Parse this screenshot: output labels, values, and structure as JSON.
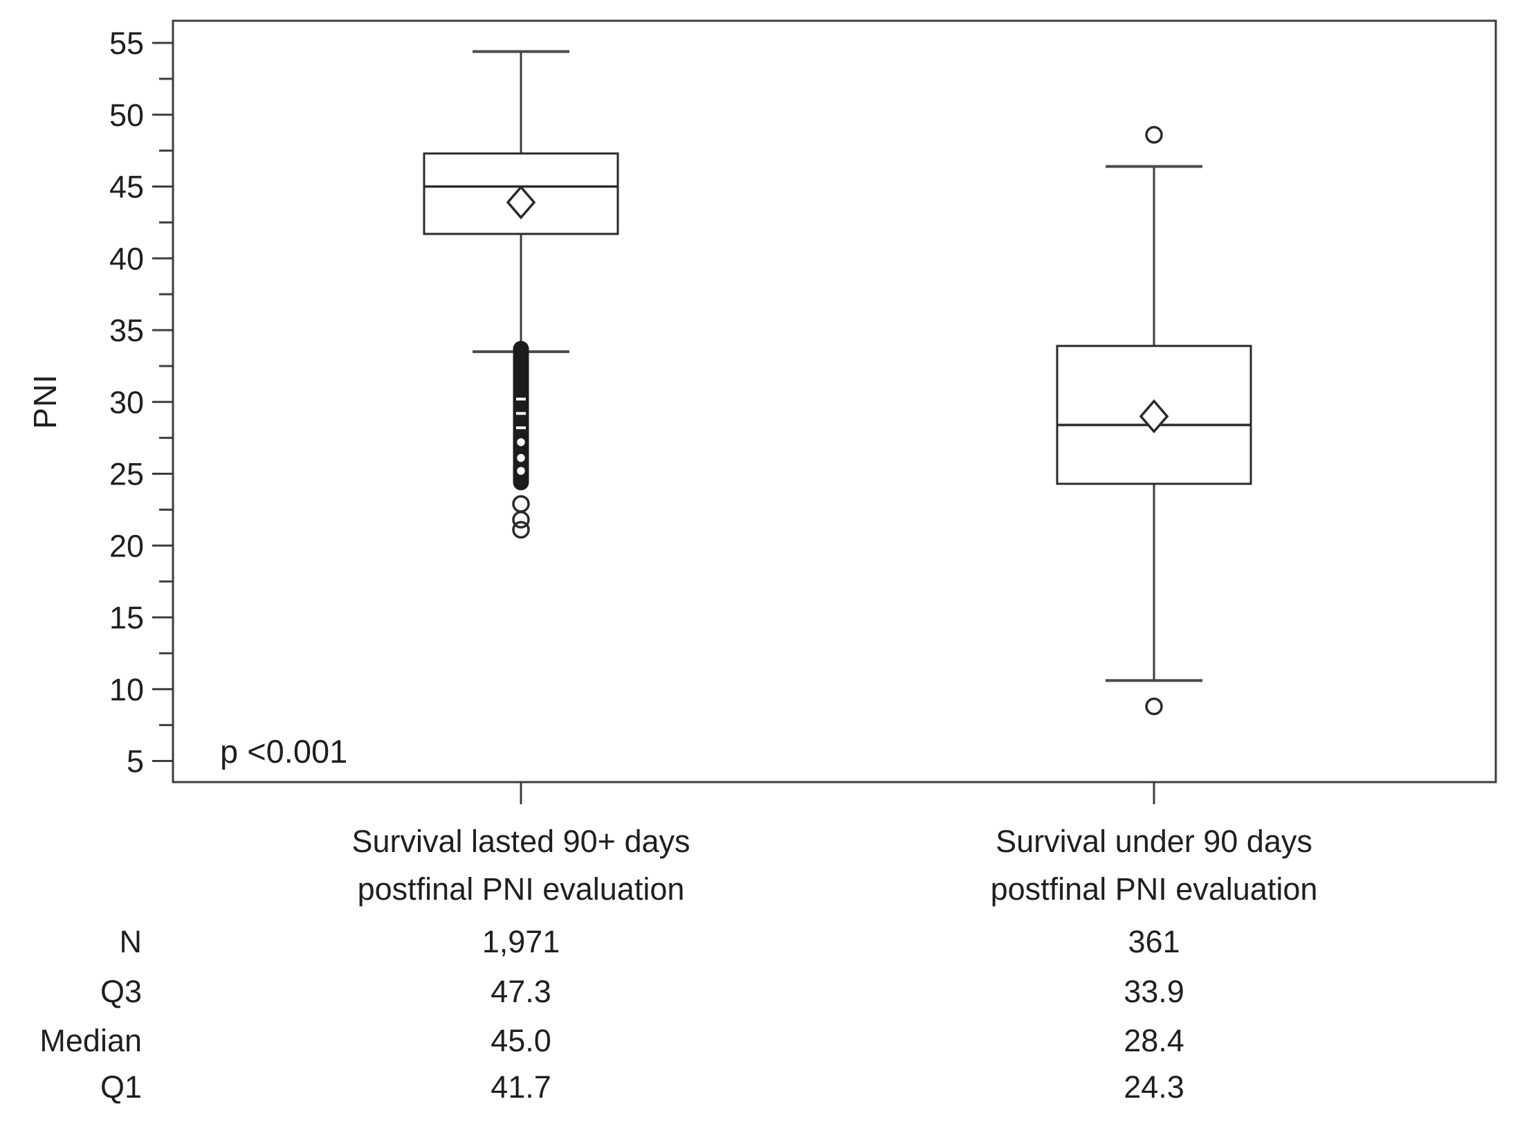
{
  "figure": {
    "y_axis_title": "PNI",
    "p_value_text": "p <0.001"
  },
  "chart_data": {
    "type": "boxplot",
    "ylabel": "PNI",
    "ylim": [
      3.5,
      56.5
    ],
    "yticks_major": [
      5,
      10,
      15,
      20,
      25,
      30,
      35,
      40,
      45,
      50,
      55
    ],
    "yticks_minor": [
      7.5,
      12.5,
      17.5,
      22.5,
      27.5,
      32.5,
      37.5,
      42.5,
      47.5,
      52.5
    ],
    "annotation": "p <0.001",
    "grid": false,
    "groups": [
      {
        "label_line1": "Survival lasted 90+ days",
        "label_line2": "postfinal PNI evaluation",
        "n": "1,971",
        "q3": 47.3,
        "median": 45.0,
        "q1": 41.7,
        "mean": 43.9,
        "whisker_high": 54.4,
        "whisker_low": 33.5,
        "outlier_cluster": {
          "top": 33.7,
          "bottom": 24.4,
          "ring_values": [
            27.2,
            26.1,
            25.2
          ],
          "dash_values": [
            30.2,
            29.2,
            28.2
          ]
        },
        "outliers_below": [
          22.9,
          21.8,
          21.1
        ],
        "outliers_above": []
      },
      {
        "label_line1": "Survival under 90 days",
        "label_line2": "postfinal PNI evaluation",
        "n": "361",
        "q3": 33.9,
        "median": 28.4,
        "q1": 24.3,
        "mean": 29.0,
        "whisker_high": 46.4,
        "whisker_low": 10.6,
        "outlier_cluster": null,
        "outliers_below": [
          8.8
        ],
        "outliers_above": [
          48.6
        ]
      }
    ],
    "stats_table": {
      "rows": [
        {
          "label": "N",
          "group1": "1,971",
          "group2": "361"
        },
        {
          "label": "Q3",
          "group1": "47.3",
          "group2": "33.9"
        },
        {
          "label": "Median",
          "group1": "45.0",
          "group2": "28.4"
        },
        {
          "label": "Q1",
          "group1": "41.7",
          "group2": "24.3"
        }
      ]
    },
    "colors": {
      "axis_line": "#3d3d3d",
      "box_line": "#2a2a2a",
      "text": "#1f1f1f",
      "box_fill": "#ffffff",
      "cluster_fill": "#1c1c1c"
    }
  }
}
